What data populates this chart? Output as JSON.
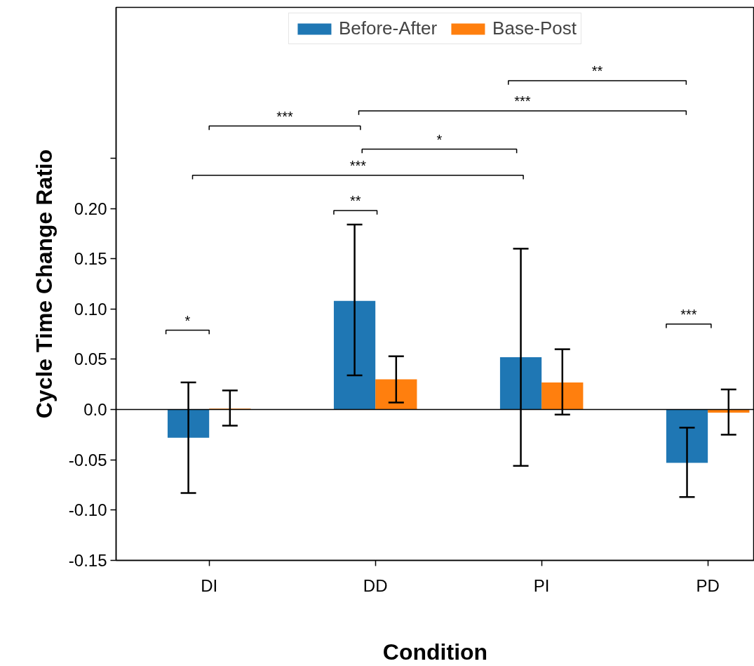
{
  "chart_data": {
    "type": "bar",
    "xlabel": "Condition",
    "ylabel": "Cycle Time Change Ratio",
    "categories": [
      "DI",
      "DD",
      "PI",
      "PD"
    ],
    "series": [
      {
        "name": "Before-After",
        "color": "#1f77b4",
        "values": [
          -0.028,
          0.108,
          0.052,
          -0.053
        ],
        "errors": [
          [
            -0.083,
            0.027
          ],
          [
            0.034,
            0.184
          ],
          [
            -0.056,
            0.16
          ],
          [
            -0.087,
            -0.018
          ]
        ]
      },
      {
        "name": "Base-Post",
        "color": "#ff7f0e",
        "values": [
          0.001,
          0.03,
          0.027,
          -0.003
        ],
        "errors": [
          [
            -0.016,
            0.019
          ],
          [
            0.007,
            0.053
          ],
          [
            -0.005,
            0.06
          ],
          [
            -0.025,
            0.02
          ]
        ]
      }
    ],
    "ylim": [
      -0.15,
      0.4
    ],
    "yticks": [
      -0.15,
      {
        "value": -0.1,
        "label": "-0.10"
      },
      -0.05,
      {
        "value": 0.0,
        "label": "0.0"
      },
      0.05,
      {
        "value": 0.1,
        "label": "0.10"
      },
      0.15,
      {
        "value": 0.2,
        "label": "0.20"
      },
      {
        "value": 0.25,
        "label": null
      }
    ],
    "ref_lines": [
      {
        "axis": "y",
        "value": 0,
        "color": "#000000"
      }
    ],
    "annotations": [
      "*",
      "**",
      "***",
      "***",
      "*",
      "***",
      "***",
      "**"
    ],
    "legend": "top",
    "grid": false
  }
}
